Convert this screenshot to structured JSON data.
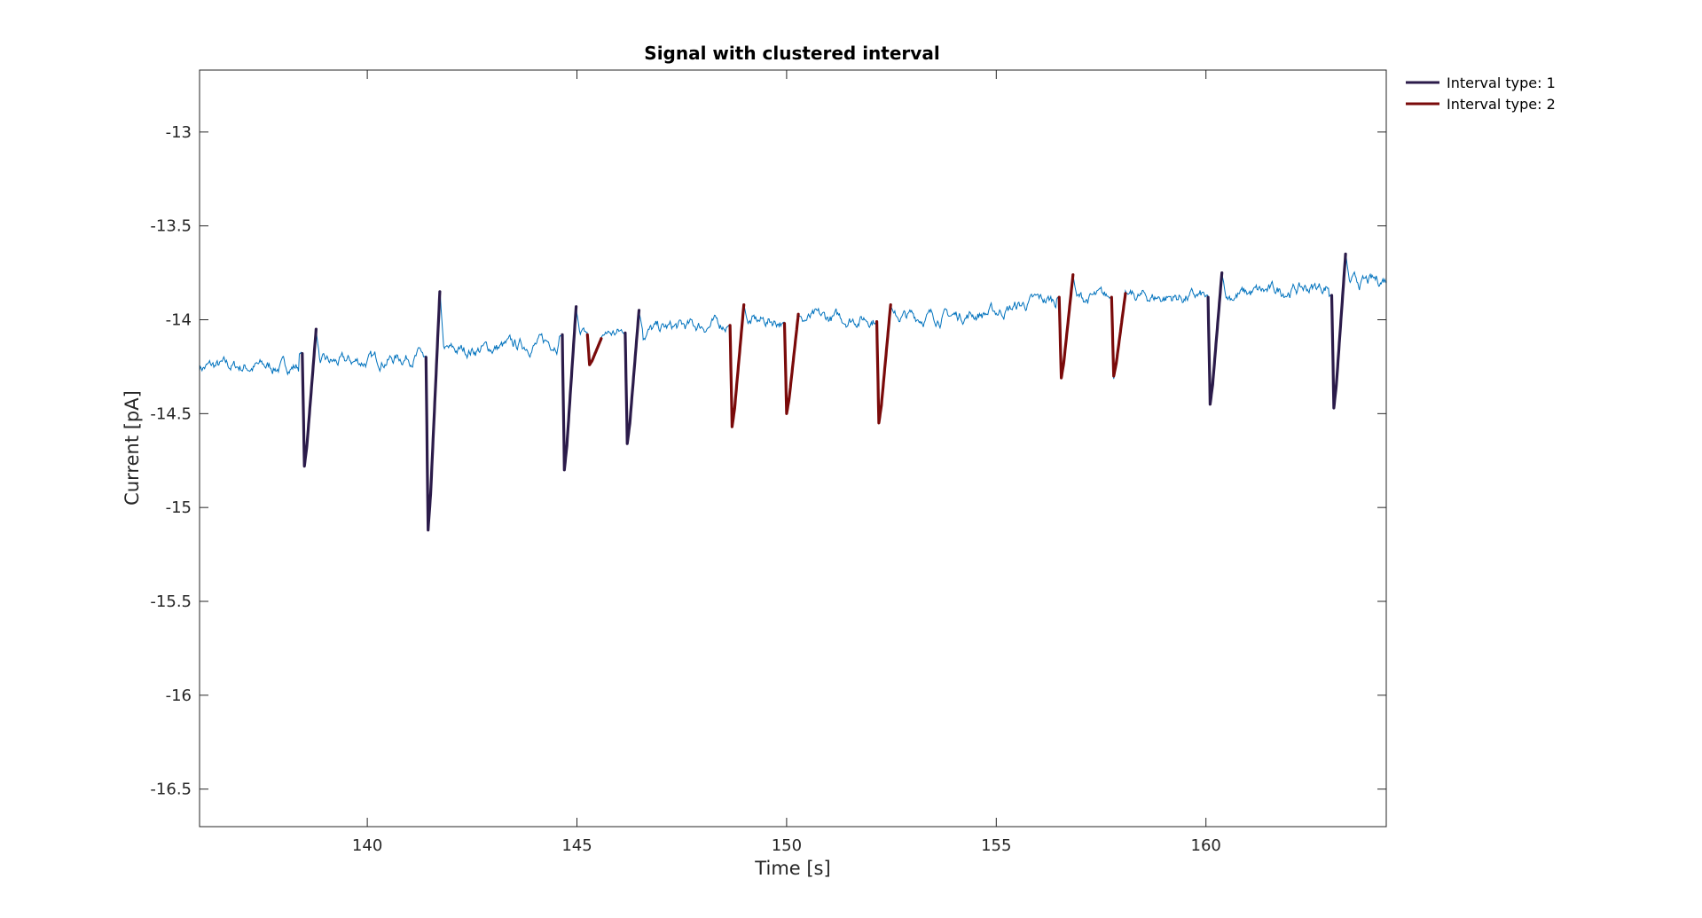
{
  "chart_data": {
    "type": "line",
    "title": "Signal with clustered interval",
    "xlabel": "Time [s]",
    "ylabel": "Current [pA]",
    "xlim": [
      136,
      164.3
    ],
    "ylim": [
      -16.7,
      -12.67
    ],
    "xticks": [
      140,
      145,
      150,
      155,
      160
    ],
    "xtick_labels": [
      "140",
      "145",
      "150",
      "155",
      "160"
    ],
    "yticks": [
      -13,
      -13.5,
      -14,
      -14.5,
      -15,
      -15.5,
      -16,
      -16.5
    ],
    "ytick_labels": [
      "-13",
      "-13.5",
      "-14",
      "-14.5",
      "-15",
      "-15.5",
      "-16",
      "-16.5"
    ],
    "grid": false,
    "legend_position": "outside-top-right",
    "colors": {
      "signal": "#0072BD",
      "type1": "#2B1B4A",
      "type2": "#7A0A0A",
      "axes": "#262626"
    },
    "baseline": {
      "x": [
        136,
        138,
        140,
        142,
        144,
        146,
        148,
        150,
        152,
        154,
        155,
        156,
        158,
        160,
        162,
        164,
        164.3
      ],
      "y": [
        -14.25,
        -14.25,
        -14.22,
        -14.17,
        -14.13,
        -14.07,
        -14.03,
        -14.0,
        -13.99,
        -13.98,
        -13.96,
        -13.9,
        -13.88,
        -13.88,
        -13.84,
        -13.8,
        -13.78
      ]
    },
    "series": [
      {
        "name": "Interval type: 1",
        "color": "#2B1B4A",
        "events": [
          {
            "t": 138.5,
            "pre": -14.18,
            "peak": -14.78,
            "post": -14.05
          },
          {
            "t": 141.45,
            "pre": -14.2,
            "peak": -15.12,
            "post": -13.85
          },
          {
            "t": 144.7,
            "pre": -14.08,
            "peak": -14.8,
            "post": -13.93
          },
          {
            "t": 146.2,
            "pre": -14.07,
            "peak": -14.66,
            "post": -13.95
          },
          {
            "t": 160.1,
            "pre": -13.88,
            "peak": -14.45,
            "post": -13.75
          },
          {
            "t": 163.05,
            "pre": -13.87,
            "peak": -14.47,
            "post": -13.65
          }
        ]
      },
      {
        "name": "Interval type: 2",
        "color": "#7A0A0A",
        "events": [
          {
            "t": 145.3,
            "pre": -14.08,
            "peak": -14.24,
            "post": -14.1
          },
          {
            "t": 148.7,
            "pre": -14.03,
            "peak": -14.57,
            "post": -13.92
          },
          {
            "t": 150.0,
            "pre": -14.02,
            "peak": -14.5,
            "post": -13.97
          },
          {
            "t": 152.2,
            "pre": -14.01,
            "peak": -14.55,
            "post": -13.92
          },
          {
            "t": 156.55,
            "pre": -13.88,
            "peak": -14.31,
            "post": -13.76
          },
          {
            "t": 157.8,
            "pre": -13.88,
            "peak": -14.3,
            "post": -13.86
          }
        ]
      }
    ],
    "legend": [
      "Interval type: 1",
      "Interval type: 2"
    ]
  }
}
